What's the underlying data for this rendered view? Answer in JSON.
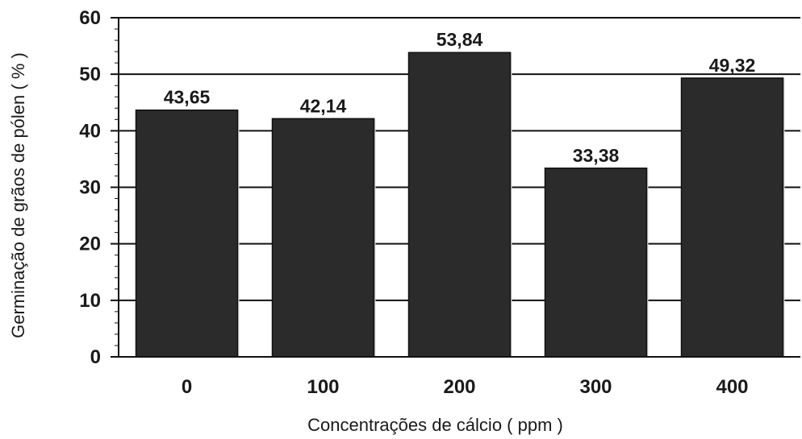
{
  "chart_data": {
    "type": "bar",
    "title": "",
    "xlabel": "Concentrações de cálcio ( ppm )",
    "ylabel": "Germinação de grãos de pólen ( % )",
    "categories": [
      "0",
      "100",
      "200",
      "300",
      "400"
    ],
    "values": [
      43.65,
      42.14,
      53.84,
      33.38,
      49.32
    ],
    "value_labels": [
      "43,65",
      "42,14",
      "53,84",
      "33,38",
      "49,32"
    ],
    "ylim": [
      0,
      60
    ],
    "yticks": [
      "0",
      "10",
      "20",
      "30",
      "40",
      "50",
      "60"
    ],
    "grid": true,
    "legend": "none",
    "colors": {
      "bar": "#2b2b2b",
      "grid": "#111111",
      "axis": "#111111"
    }
  }
}
